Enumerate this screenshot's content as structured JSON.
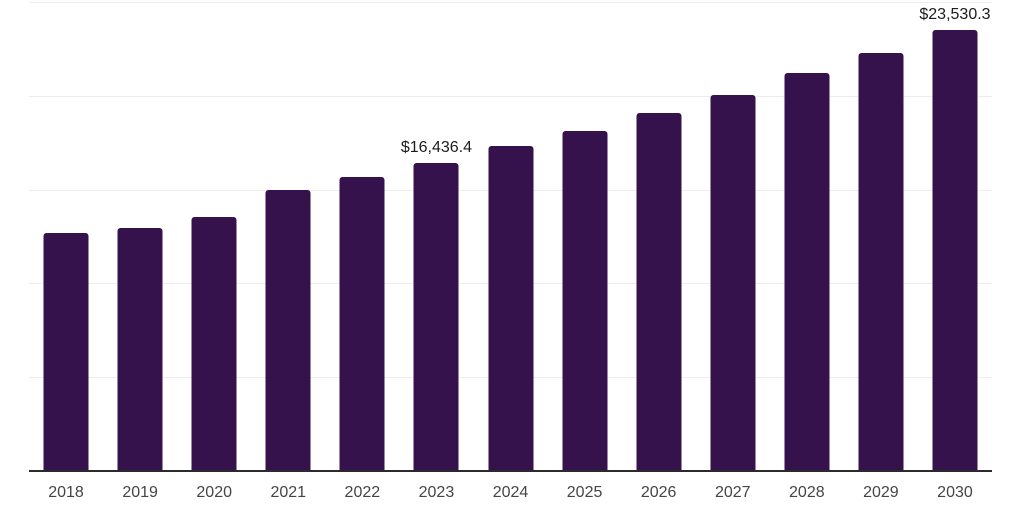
{
  "chart_data": {
    "type": "bar",
    "title": "",
    "xlabel": "",
    "ylabel": "",
    "categories": [
      "2018",
      "2019",
      "2020",
      "2021",
      "2022",
      "2023",
      "2024",
      "2025",
      "2026",
      "2027",
      "2028",
      "2029",
      "2030"
    ],
    "values": [
      12700,
      12950,
      13550,
      15000,
      15650,
      16436.4,
      17300,
      18150,
      19100,
      20050,
      21200,
      22300,
      23530.3
    ],
    "point_labels": [
      {
        "index": 5,
        "text": "$16,436.4"
      },
      {
        "index": 12,
        "text": "$23,530.3"
      }
    ],
    "ylim": [
      0,
      25000
    ],
    "gridline_step": 5000,
    "grid": "horizontal-only",
    "legend": "none",
    "y_tick_labels_visible": false,
    "bar_color": "#35124B"
  },
  "colors": {
    "background": "#ffffff",
    "bar": "#35124B",
    "gridline": "#ededed",
    "axis_line": "#2b2b2b",
    "tick_text": "#454545",
    "value_label_text": "#1c1c1c"
  }
}
